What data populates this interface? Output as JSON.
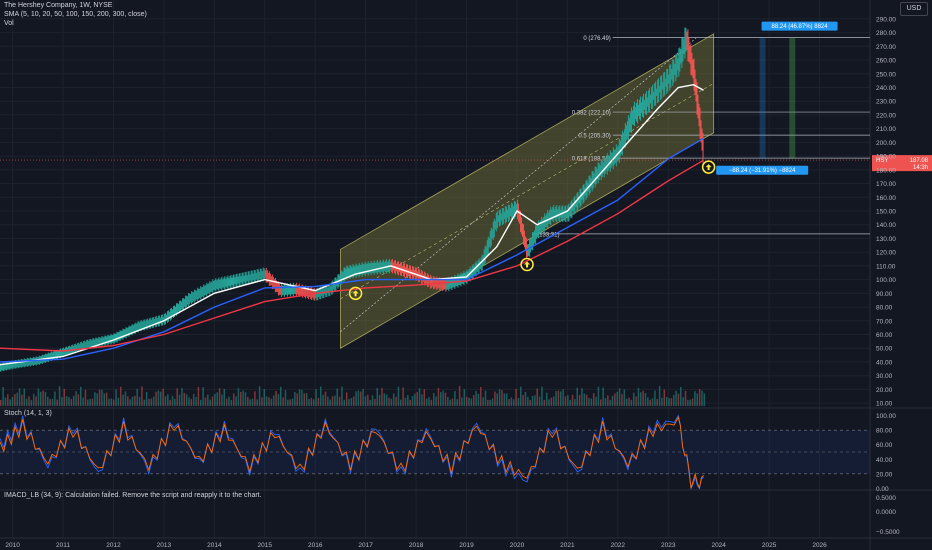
{
  "header": {
    "title": "The Hershey Company, 1W, NYSE",
    "sma_label": "SMA (5, 10, 20, 50, 100, 150, 200, 300, close)",
    "vol_label": "Vol",
    "currency": "USD"
  },
  "stoch": {
    "label": "Stoch (14, 1, 3)"
  },
  "imacd": {
    "label": "IMACD_LB (34, 9): Calculation failed. Remove the script and reapply it to the chart."
  },
  "colors": {
    "background": "#131722",
    "price_up": "#26a69a",
    "price_down": "#ef5350",
    "sma_white": "#ffffff",
    "sma_blue": "#2962ff",
    "sma_red": "#f23645",
    "sma_green": "#4caf50",
    "channel_fill": "#7a7a3a",
    "stoch_k": "#2962ff",
    "stoch_d": "#ff6d00",
    "marker": "#ffeb3b",
    "measure_up": "#2196f3",
    "measure_down": "#2196f3"
  },
  "chart_data": {
    "type": "line",
    "price_axis": {
      "ticks": [
        "290.00",
        "280.00",
        "270.00",
        "260.00",
        "250.00",
        "240.00",
        "230.00",
        "220.00",
        "210.00",
        "200.00",
        "190.00",
        "180.00",
        "170.00",
        "160.00",
        "150.00",
        "140.00",
        "130.00",
        "120.00",
        "110.00",
        "100.00",
        "90.00",
        "80.00",
        "70.00",
        "60.00",
        "50.00",
        "40.00",
        "30.00",
        "20.00",
        "10.00"
      ],
      "range": [
        5,
        295
      ]
    },
    "stoch_axis": {
      "ticks": [
        "100.00",
        "80.00",
        "60.00",
        "40.00",
        "20.00",
        "0.00"
      ],
      "range": [
        -5,
        105
      ]
    },
    "imacd_axis": {
      "ticks": [
        "0.5000",
        "0.0000",
        "−0.5000"
      ]
    },
    "x_axis": {
      "ticks": [
        "2010",
        "2011",
        "2012",
        "2013",
        "2014",
        "2015",
        "2016",
        "2017",
        "2018",
        "2019",
        "2020",
        "2021",
        "2022",
        "2023",
        "2024",
        "2025",
        "2026"
      ],
      "range": [
        2009.75,
        2027.0
      ]
    },
    "price_series": {
      "name": "HSY",
      "x": [
        2009.75,
        2010.0,
        2010.5,
        2011.0,
        2011.5,
        2012.0,
        2012.5,
        2013.0,
        2013.5,
        2014.0,
        2014.5,
        2015.0,
        2015.3,
        2015.6,
        2016.0,
        2016.3,
        2016.6,
        2017.0,
        2017.5,
        2018.0,
        2018.3,
        2018.6,
        2019.0,
        2019.3,
        2019.6,
        2020.0,
        2020.2,
        2020.4,
        2020.7,
        2021.0,
        2021.3,
        2021.6,
        2022.0,
        2022.3,
        2022.6,
        2023.0,
        2023.2,
        2023.35,
        2023.5,
        2023.6,
        2023.7
      ],
      "y": [
        36,
        38,
        41,
        47,
        53,
        57,
        66,
        71,
        86,
        96,
        100,
        104,
        92,
        93,
        89,
        93,
        105,
        108,
        110,
        104,
        98,
        96,
        102,
        112,
        144,
        152,
        120,
        136,
        148,
        148,
        162,
        178,
        192,
        220,
        230,
        246,
        258,
        276,
        250,
        220,
        190
      ]
    },
    "sma_series": [
      {
        "color": "#ffffff",
        "x": [
          2009.75,
          2011,
          2012,
          2013,
          2014,
          2015,
          2016,
          2016.8,
          2017.5,
          2018.3,
          2019.0,
          2019.6,
          2020.0,
          2020.4,
          2021.0,
          2021.6,
          2022.2,
          2022.8,
          2023.2,
          2023.5,
          2023.7
        ],
        "y": [
          38,
          44,
          56,
          70,
          90,
          100,
          92,
          104,
          110,
          100,
          102,
          124,
          150,
          140,
          150,
          175,
          200,
          225,
          240,
          242,
          238
        ]
      },
      {
        "color": "#2962ff",
        "x": [
          2009.75,
          2011,
          2012,
          2013,
          2014,
          2015,
          2016,
          2017,
          2018,
          2019,
          2020,
          2021,
          2022,
          2023,
          2023.7
        ],
        "y": [
          40,
          42,
          50,
          62,
          80,
          94,
          95,
          100,
          100,
          100,
          118,
          138,
          158,
          188,
          203
        ]
      },
      {
        "color": "#f23645",
        "x": [
          2009.75,
          2011,
          2012,
          2013,
          2014,
          2015,
          2016,
          2017,
          2018,
          2019,
          2020,
          2021,
          2022,
          2023,
          2023.7
        ],
        "y": [
          50,
          48,
          52,
          60,
          72,
          84,
          90,
          94,
          96,
          99,
          110,
          128,
          148,
          172,
          187
        ]
      }
    ],
    "stoch_series": [
      {
        "name": "",
        "color": "#2962ff",
        "x": [
          2009.75,
          2010.2,
          2010.7,
          2011.2,
          2011.7,
          2012.2,
          2012.7,
          2013.2,
          2013.7,
          2014.2,
          2014.7,
          2015.2,
          2015.7,
          2016.2,
          2016.7,
          2017.2,
          2017.7,
          2018.2,
          2018.7,
          2019.2,
          2019.7,
          2020.2,
          2020.7,
          2021.2,
          2021.7,
          2022.2,
          2022.7,
          2023.2,
          2023.45,
          2023.7
        ],
        "y": [
          60,
          90,
          30,
          85,
          20,
          88,
          25,
          92,
          35,
          85,
          25,
          80,
          20,
          90,
          30,
          85,
          20,
          80,
          25,
          90,
          30,
          10,
          85,
          20,
          88,
          30,
          85,
          95,
          5,
          8
        ]
      },
      {
        "name": "",
        "color": "#ff6d00",
        "x": [
          2009.75,
          2010.2,
          2010.7,
          2011.2,
          2011.7,
          2012.2,
          2012.7,
          2013.2,
          2013.7,
          2014.2,
          2014.7,
          2015.2,
          2015.7,
          2016.2,
          2016.7,
          2017.2,
          2017.7,
          2018.2,
          2018.7,
          2019.2,
          2019.7,
          2020.2,
          2020.7,
          2021.2,
          2021.7,
          2022.2,
          2022.7,
          2023.2,
          2023.45,
          2023.7
        ],
        "y": [
          55,
          85,
          35,
          80,
          25,
          83,
          30,
          88,
          38,
          80,
          30,
          76,
          25,
          86,
          34,
          80,
          25,
          76,
          30,
          86,
          35,
          15,
          80,
          25,
          83,
          34,
          80,
          92,
          10,
          10
        ]
      }
    ],
    "stoch_bands": [
      80,
      50,
      20
    ],
    "channel": {
      "lower": [
        [
          2016.5,
          50
        ],
        [
          2023.9,
          207
        ]
      ],
      "upper": [
        [
          2016.5,
          122
        ],
        [
          2023.9,
          279
        ]
      ]
    },
    "fib_levels": [
      {
        "label": "0 (276.49)",
        "value": 276.49
      },
      {
        "label": "0.382 (222.10)",
        "value": 222.1
      },
      {
        "label": "0.5 (205.30)",
        "value": 205.3
      },
      {
        "label": "0.618 (188.50)",
        "value": 188.5
      }
    ],
    "fib_extra_label": {
      "label": "(133.31)",
      "value": 133.31
    },
    "measure_up_label": "88.24 (46.87%) 8824",
    "measure_down_label": "−88.24 (−31.91%) −8824",
    "current_price": {
      "ticker": "HSY",
      "value": "187.08",
      "countdown": "14:3h"
    },
    "markers": [
      {
        "x": 2016.8,
        "y": 90
      },
      {
        "x": 2020.2,
        "y": 111
      },
      {
        "x": 2023.8,
        "y": 182
      }
    ],
    "volume": {
      "x_start": 2009.75,
      "x_end": 2023.7,
      "max": 1.0
    }
  }
}
